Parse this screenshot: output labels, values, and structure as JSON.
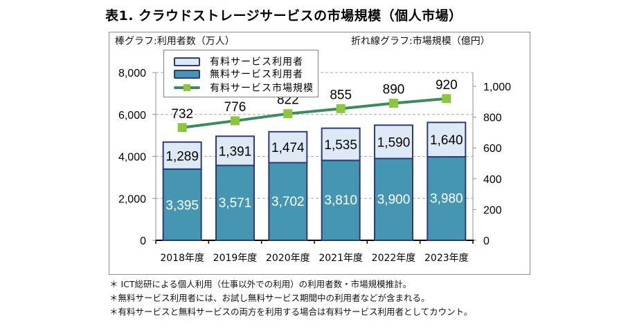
{
  "title": "表1. クラウドストレージサービスの市場規模（個人市場）",
  "colors": {
    "paid_users_fill": "#ddeaf6",
    "free_users_fill": "#4596b1",
    "bar_border": "#2e3a78",
    "line": "#3a8c5c",
    "marker": "#8cc63f",
    "grid": "#a6a6a6"
  },
  "chart_data": {
    "type": "bar",
    "subtype": "stacked-bar-with-line",
    "title": "表1. クラウドストレージサービスの市場規模（個人市場）",
    "categories": [
      "2018年度",
      "2019年度",
      "2020年度",
      "2021年度",
      "2022年度",
      "2023年度"
    ],
    "series": [
      {
        "name": "無料サービス利用者",
        "type": "bar",
        "axis": "left",
        "stack": "users",
        "values": [
          3395,
          3571,
          3702,
          3810,
          3900,
          3980
        ],
        "labels": [
          "3,395",
          "3,571",
          "3,702",
          "3,810",
          "3,900",
          "3,980"
        ]
      },
      {
        "name": "有料サービス利用者",
        "type": "bar",
        "axis": "left",
        "stack": "users",
        "values": [
          1289,
          1391,
          1474,
          1535,
          1590,
          1640
        ],
        "labels": [
          "1,289",
          "1,391",
          "1,474",
          "1,535",
          "1,590",
          "1,640"
        ]
      },
      {
        "name": "有料サービス市場規模",
        "type": "line",
        "axis": "right",
        "values": [
          732,
          776,
          822,
          855,
          890,
          920
        ],
        "labels": [
          "732",
          "776",
          "822",
          "855",
          "890",
          "920"
        ]
      }
    ],
    "legend": {
      "position": "top-left",
      "entries": [
        "有料サービス利用者",
        "無料サービス利用者",
        "有料サービス市場規模"
      ]
    },
    "y_left": {
      "label": "棒グラフ:利用者数（万人）",
      "ylim": [
        0,
        8000
      ],
      "ticks": [
        0,
        2000,
        4000,
        6000,
        8000
      ],
      "tick_labels": [
        "0",
        "2,000",
        "4,000",
        "6,000",
        "8,000"
      ]
    },
    "y_right": {
      "label": "折れ線グラフ:市場規模（億円）",
      "ylim": [
        0,
        1090
      ],
      "ticks": [
        0,
        200,
        400,
        600,
        800,
        1000
      ],
      "tick_labels": [
        "0",
        "200",
        "400",
        "600",
        "800",
        "1,000"
      ]
    },
    "grid": true,
    "grid_style": "dashed horizontal at left-axis ticks"
  },
  "notes": [
    "＊ ICT総研による個人利用（仕事以外での利用）の利用者数・市場規模推計。",
    "＊無料サービス利用者には、お試し無料サービス期間中の利用者などが含まれる。",
    "＊有料サービスと無料サービスの両方を利用する場合は有料サービス利用者としてカウント。"
  ]
}
